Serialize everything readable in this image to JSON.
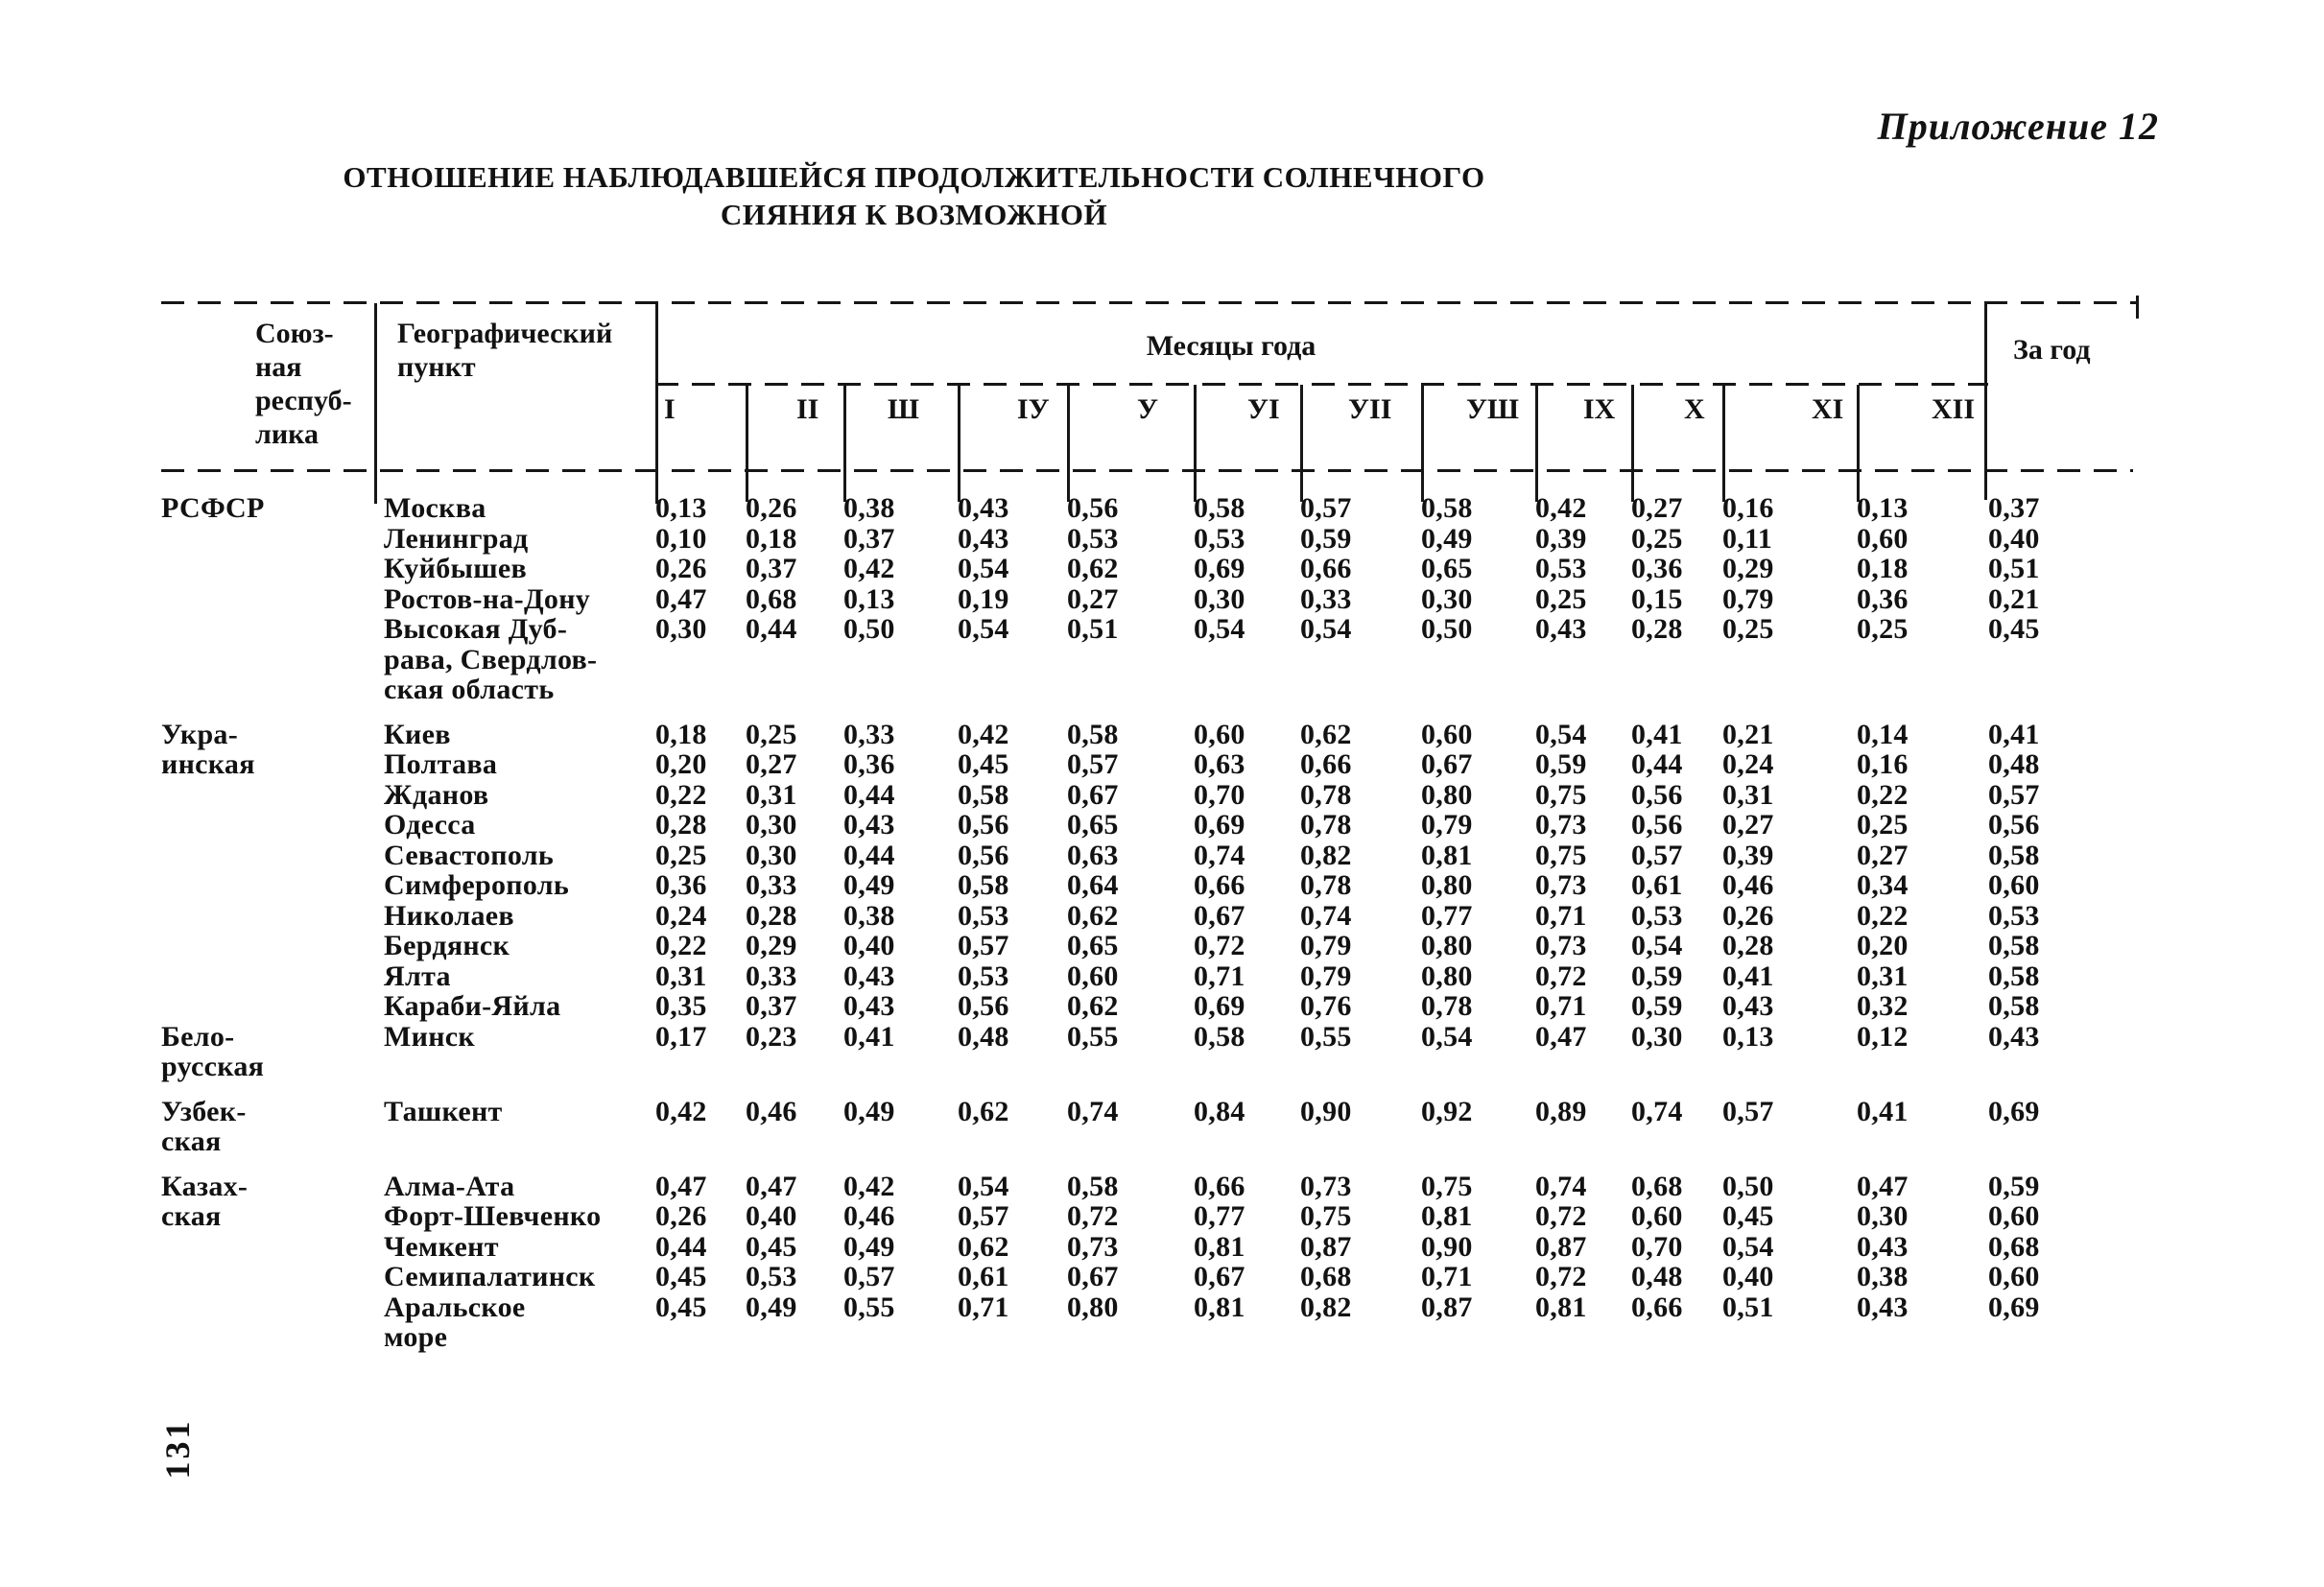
{
  "page": {
    "appendix": "Приложение 12",
    "title_line1": "ОТНОШЕНИЕ НАБЛЮДАВШЕЙСЯ ПРОДОЛЖИТЕЛЬНОСТИ СОЛНЕЧНОГО",
    "title_line2": "СИЯНИЯ К ВОЗМОЖНОЙ",
    "page_number": "131"
  },
  "table": {
    "col_republic_header": "Союз-\nная\nреспуб-\nлика",
    "col_point_header": "Географический\nпункт",
    "months_label": "Месяцы года",
    "year_label": "За год",
    "month_cols": [
      "I",
      "II",
      "Ш",
      "IУ",
      "У",
      "УI",
      "УII",
      "УШ",
      "IX",
      "X",
      "XI",
      "XII"
    ],
    "groups": [
      {
        "republic": "РСФСР",
        "rows": [
          {
            "point": "Москва",
            "values": [
              "0,13",
              "0,26",
              "0,38",
              "0,43",
              "0,56",
              "0,58",
              "0,57",
              "0,58",
              "0,42",
              "0,27",
              "0,16",
              "0,13",
              "0,37"
            ]
          },
          {
            "point": "Ленинград",
            "values": [
              "0,10",
              "0,18",
              "0,37",
              "0,43",
              "0,53",
              "0,53",
              "0,59",
              "0,49",
              "0,39",
              "0,25",
              "0,11",
              "0,60",
              "0,40"
            ]
          },
          {
            "point": "Куйбышев",
            "values": [
              "0,26",
              "0,37",
              "0,42",
              "0,54",
              "0,62",
              "0,69",
              "0,66",
              "0,65",
              "0,53",
              "0,36",
              "0,29",
              "0,18",
              "0,51"
            ]
          },
          {
            "point": "Ростов-на-Дону",
            "values": [
              "0,47",
              "0,68",
              "0,13",
              "0,19",
              "0,27",
              "0,30",
              "0,33",
              "0,30",
              "0,25",
              "0,15",
              "0,79",
              "0,36",
              "0,21"
            ]
          },
          {
            "point": "Высокая Дуб-\nрава, Свердлов-\nская область",
            "values": [
              "0,30",
              "0,44",
              "0,50",
              "0,54",
              "0,51",
              "0,54",
              "0,54",
              "0,50",
              "0,43",
              "0,28",
              "0,25",
              "0,25",
              "0,45"
            ]
          }
        ]
      },
      {
        "republic": "Укра-\nинская",
        "rows": [
          {
            "point": "Киев",
            "values": [
              "0,18",
              "0,25",
              "0,33",
              "0,42",
              "0,58",
              "0,60",
              "0,62",
              "0,60",
              "0,54",
              "0,41",
              "0,21",
              "0,14",
              "0,41"
            ]
          },
          {
            "point": "Полтава",
            "values": [
              "0,20",
              "0,27",
              "0,36",
              "0,45",
              "0,57",
              "0,63",
              "0,66",
              "0,67",
              "0,59",
              "0,44",
              "0,24",
              "0,16",
              "0,48"
            ]
          },
          {
            "point": "Жданов",
            "values": [
              "0,22",
              "0,31",
              "0,44",
              "0,58",
              "0,67",
              "0,70",
              "0,78",
              "0,80",
              "0,75",
              "0,56",
              "0,31",
              "0,22",
              "0,57"
            ]
          },
          {
            "point": "Одесса",
            "values": [
              "0,28",
              "0,30",
              "0,43",
              "0,56",
              "0,65",
              "0,69",
              "0,78",
              "0,79",
              "0,73",
              "0,56",
              "0,27",
              "0,25",
              "0,56"
            ]
          },
          {
            "point": "Севастополь",
            "values": [
              "0,25",
              "0,30",
              "0,44",
              "0,56",
              "0,63",
              "0,74",
              "0,82",
              "0,81",
              "0,75",
              "0,57",
              "0,39",
              "0,27",
              "0,58"
            ]
          },
          {
            "point": "Симферополь",
            "values": [
              "0,36",
              "0,33",
              "0,49",
              "0,58",
              "0,64",
              "0,66",
              "0,78",
              "0,80",
              "0,73",
              "0,61",
              "0,46",
              "0,34",
              "0,60"
            ]
          },
          {
            "point": "Николаев",
            "values": [
              "0,24",
              "0,28",
              "0,38",
              "0,53",
              "0,62",
              "0,67",
              "0,74",
              "0,77",
              "0,71",
              "0,53",
              "0,26",
              "0,22",
              "0,53"
            ]
          },
          {
            "point": "Бердянск",
            "values": [
              "0,22",
              "0,29",
              "0,40",
              "0,57",
              "0,65",
              "0,72",
              "0,79",
              "0,80",
              "0,73",
              "0,54",
              "0,28",
              "0,20",
              "0,58"
            ]
          },
          {
            "point": "Ялта",
            "values": [
              "0,31",
              "0,33",
              "0,43",
              "0,53",
              "0,60",
              "0,71",
              "0,79",
              "0,80",
              "0,72",
              "0,59",
              "0,41",
              "0,31",
              "0,58"
            ]
          },
          {
            "point": "Караби-Яйла",
            "values": [
              "0,35",
              "0,37",
              "0,43",
              "0,56",
              "0,62",
              "0,69",
              "0,76",
              "0,78",
              "0,71",
              "0,59",
              "0,43",
              "0,32",
              "0,58"
            ]
          }
        ]
      },
      {
        "republic": "Бело-\nрусская",
        "rows": [
          {
            "point": "Минск",
            "values": [
              "0,17",
              "0,23",
              "0,41",
              "0,48",
              "0,55",
              "0,58",
              "0,55",
              "0,54",
              "0,47",
              "0,30",
              "0,13",
              "0,12",
              "0,43"
            ]
          }
        ]
      },
      {
        "republic": "Узбек-\nская",
        "rows": [
          {
            "point": "Ташкент",
            "values": [
              "0,42",
              "0,46",
              "0,49",
              "0,62",
              "0,74",
              "0,84",
              "0,90",
              "0,92",
              "0,89",
              "0,74",
              "0,57",
              "0,41",
              "0,69"
            ]
          }
        ]
      },
      {
        "republic": "Казах-\nская",
        "rows": [
          {
            "point": "Алма-Ата",
            "values": [
              "0,47",
              "0,47",
              "0,42",
              "0,54",
              "0,58",
              "0,66",
              "0,73",
              "0,75",
              "0,74",
              "0,68",
              "0,50",
              "0,47",
              "0,59"
            ]
          },
          {
            "point": "Форт-Шевченко",
            "values": [
              "0,26",
              "0,40",
              "0,46",
              "0,57",
              "0,72",
              "0,77",
              "0,75",
              "0,81",
              "0,72",
              "0,60",
              "0,45",
              "0,30",
              "0,60"
            ]
          },
          {
            "point": "Чемкент",
            "values": [
              "0,44",
              "0,45",
              "0,49",
              "0,62",
              "0,73",
              "0,81",
              "0,87",
              "0,90",
              "0,87",
              "0,70",
              "0,54",
              "0,43",
              "0,68"
            ]
          },
          {
            "point": "Семипалатинск",
            "values": [
              "0,45",
              "0,53",
              "0,57",
              "0,61",
              "0,67",
              "0,67",
              "0,68",
              "0,71",
              "0,72",
              "0,48",
              "0,40",
              "0,38",
              "0,60"
            ]
          },
          {
            "point": "Аральское\nморе",
            "values": [
              "0,45",
              "0,49",
              "0,55",
              "0,71",
              "0,80",
              "0,81",
              "0,82",
              "0,87",
              "0,81",
              "0,66",
              "0,51",
              "0,43",
              "0,69"
            ]
          }
        ]
      }
    ]
  }
}
